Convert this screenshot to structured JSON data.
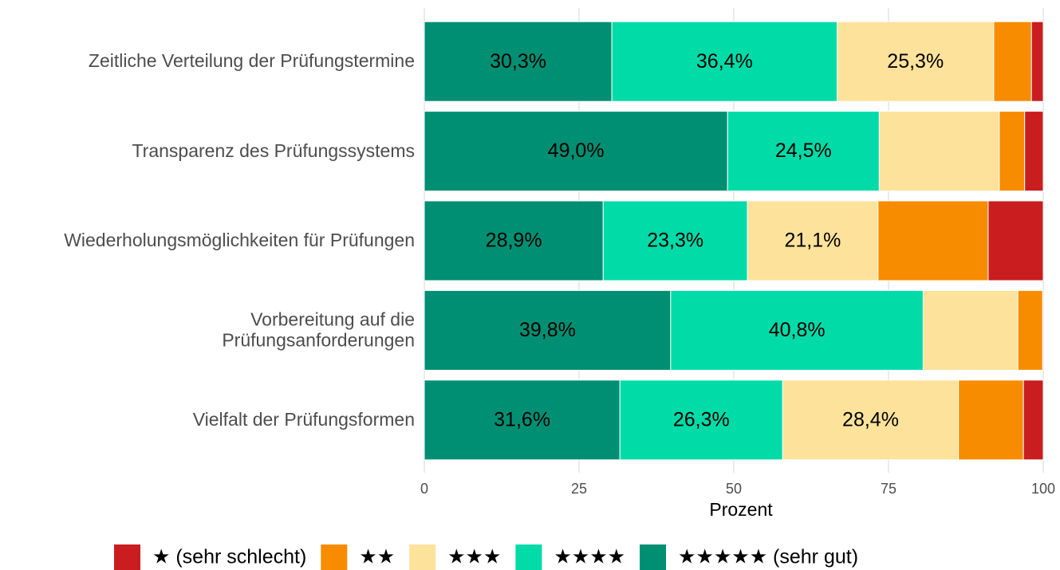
{
  "chart_data": {
    "type": "stacked-barh",
    "categories": [
      "Zeitliche Verteilung der Prüfungstermine",
      "Transparenz des Prüfungssystems",
      "Wiederholungsmöglichkeiten für Prüfungen",
      "Vorbereitung auf die\nPrüfungsanforderungen",
      "Vielfalt der Prüfungsformen"
    ],
    "series": [
      {
        "name": "★ (sehr schlecht)",
        "color": "#c91d1f",
        "values": [
          1.9,
          3.0,
          8.9,
          0,
          3.2
        ],
        "value_labels": [
          null,
          null,
          null,
          null,
          null
        ]
      },
      {
        "name": "★★",
        "color": "#f78c00",
        "values": [
          6.1,
          4.1,
          17.8,
          4.0,
          10.5
        ],
        "value_labels": [
          null,
          null,
          null,
          null,
          null
        ]
      },
      {
        "name": "★★★",
        "color": "#fde29b",
        "values": [
          25.3,
          19.4,
          21.1,
          15.3,
          28.4
        ],
        "value_labels": [
          "25,3%",
          null,
          "21,1%",
          null,
          "28,4%"
        ]
      },
      {
        "name": "★★★★",
        "color": "#00dba8",
        "values": [
          36.4,
          24.5,
          23.3,
          40.8,
          26.3
        ],
        "value_labels": [
          "36,4%",
          "24,5%",
          "23,3%",
          "40,8%",
          "26,3%"
        ]
      },
      {
        "name": "★★★★★ (sehr gut)",
        "color": "#008f73",
        "values": [
          30.3,
          49.0,
          28.9,
          39.8,
          31.6
        ],
        "value_labels": [
          "30,3%",
          "49,0%",
          "28,9%",
          "39,8%",
          "31,6%"
        ]
      }
    ],
    "xlabel": "Prozent",
    "xlim": [
      0,
      100
    ],
    "xticks": [
      0,
      25,
      50,
      75,
      100
    ],
    "grid": true
  }
}
